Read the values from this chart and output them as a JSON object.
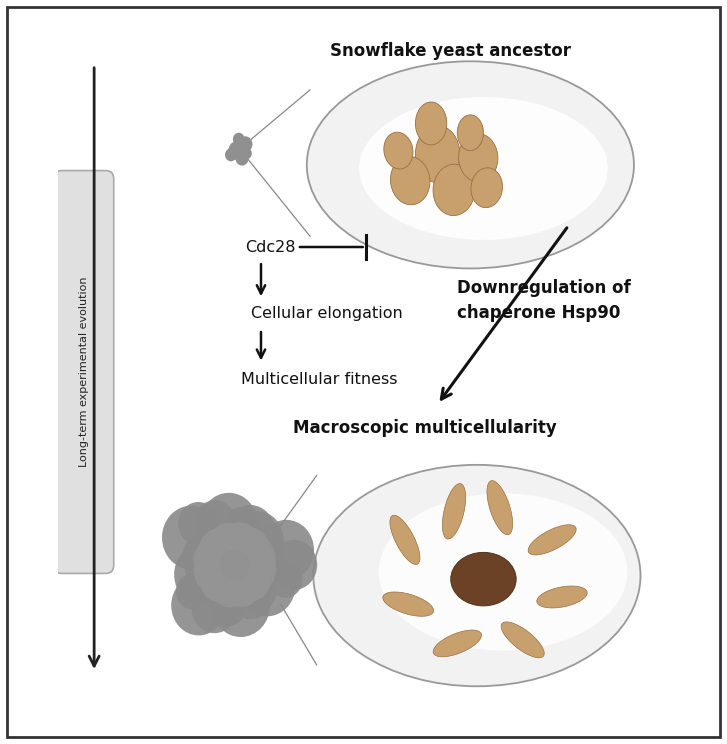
{
  "title_top": "Snowflake yeast ancestor",
  "title_bottom": "Macroscopic multicellularity",
  "left_label": "Long-term experimental evolution",
  "text_cdc28": "Cdc28",
  "text_cellular": "Cellular elongation",
  "text_multicellular": "Multicellular fitness",
  "text_downreg": "Downregulation of\nchaperone Hsp90",
  "tan": "#c8a06e",
  "dark_tan": "#6b4226",
  "gray_blob": "#8a8a8a",
  "gray_blob2": "#9e9e9e",
  "ellipse_edge": "#999999",
  "ellipse_face": "#f2f2f2",
  "arrow_color": "#222222",
  "label_box_face": "#e0e0e0",
  "label_box_edge": "#aaaaaa",
  "border_color": "#333333"
}
